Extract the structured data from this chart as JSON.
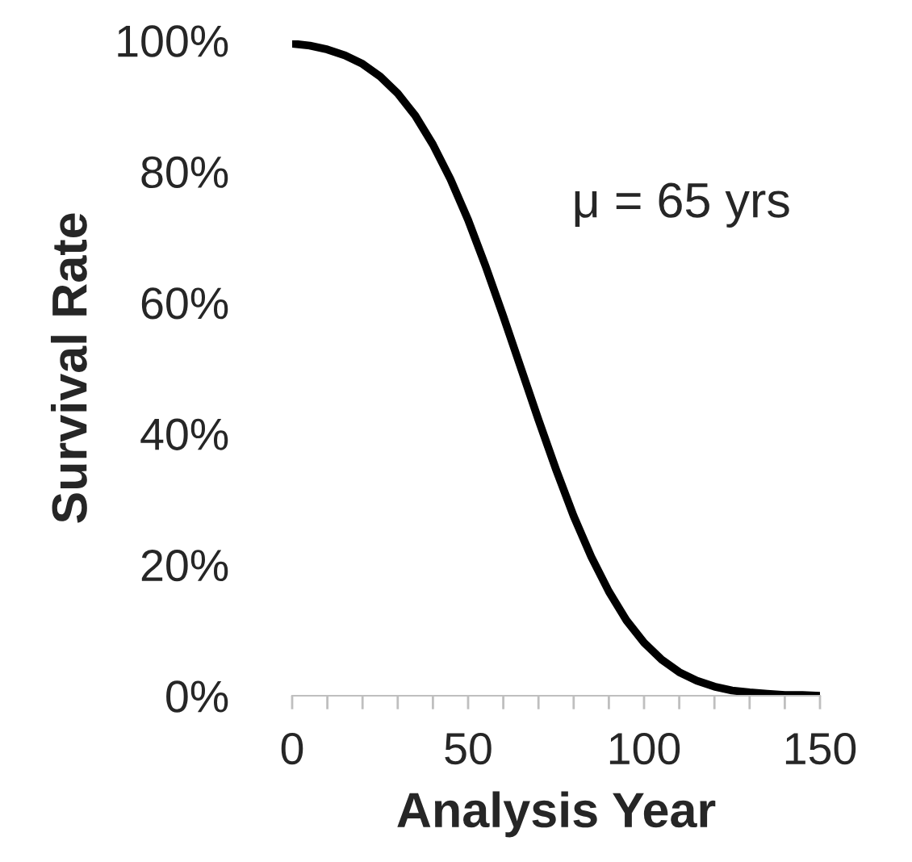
{
  "chart_data": {
    "type": "line",
    "xlabel": "Analysis Year",
    "ylabel": "Survival Rate",
    "annotations": [
      "μ = 65 yrs"
    ],
    "x": [
      0,
      5,
      10,
      15,
      20,
      25,
      30,
      35,
      40,
      45,
      50,
      55,
      60,
      65,
      70,
      75,
      80,
      85,
      90,
      95,
      100,
      105,
      110,
      115,
      120,
      125,
      130,
      135,
      140,
      145,
      150
    ],
    "series": [
      {
        "color": "#000000",
        "values": [
          99.5,
          99.2,
          98.6,
          97.7,
          96.4,
          94.5,
          91.9,
          88.5,
          84.1,
          78.8,
          72.6,
          65.5,
          57.9,
          50,
          42.1,
          34.5,
          27.4,
          21.2,
          15.9,
          11.5,
          8.1,
          5.5,
          3.6,
          2.3,
          1.4,
          0.8,
          0.5,
          0.3,
          0.1,
          0.1,
          0.0
        ]
      }
    ],
    "xlim": [
      0,
      150
    ],
    "xticks": [
      0,
      {
        "value": 10,
        "label": null
      },
      {
        "value": 20,
        "label": null
      },
      {
        "value": 30,
        "label": null
      },
      {
        "value": 40,
        "label": null
      },
      50,
      {
        "value": 60,
        "label": null
      },
      {
        "value": 70,
        "label": null
      },
      {
        "value": 80,
        "label": null
      },
      {
        "value": 90,
        "label": null
      },
      100,
      {
        "value": 110,
        "label": null
      },
      {
        "value": 120,
        "label": null
      },
      {
        "value": 130,
        "label": null
      },
      {
        "value": 140,
        "label": null
      },
      150
    ],
    "ylim": [
      0,
      100
    ],
    "yticks": [
      {
        "value": 0,
        "label": "0%"
      },
      {
        "value": 20,
        "label": "20%"
      },
      {
        "value": 40,
        "label": "40%"
      },
      {
        "value": 60,
        "label": "60%"
      },
      {
        "value": 80,
        "label": "80%"
      },
      {
        "value": 100,
        "label": "100%"
      }
    ],
    "grid": false,
    "legend": false,
    "marker": "none",
    "line_style": "solid"
  }
}
